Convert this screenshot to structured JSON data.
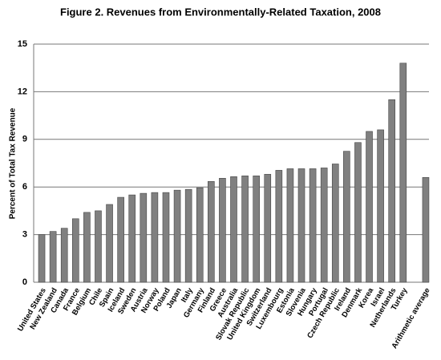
{
  "chart_data": {
    "type": "bar",
    "title": "Figure 2. Revenues from Environmentally-Related Taxation, 2008",
    "y_label": "Percent of Total Tax Revenue",
    "categories": [
      "United States",
      "New Zealand",
      "Canada",
      "France",
      "Belgium",
      "Chile",
      "Spain",
      "Iceland",
      "Sweden",
      "Austria",
      "Norway",
      "Poland",
      "Japan",
      "Italy",
      "Germany",
      "Finland",
      "Greece",
      "Australia",
      "Slovak Republic",
      "United Kingdom",
      "Switzerland",
      "Luxembourg",
      "Estonia",
      "Slovenia",
      "Hungary",
      "Portugal",
      "Czech Republic",
      "Ireland",
      "Denmark",
      "Korea",
      "Israel",
      "Netherlands",
      "Turkey",
      null,
      "Arithmetic average"
    ],
    "values": [
      3.0,
      3.2,
      3.4,
      4.0,
      4.4,
      4.5,
      4.9,
      5.35,
      5.5,
      5.6,
      5.65,
      5.65,
      5.8,
      5.85,
      5.95,
      6.35,
      6.55,
      6.65,
      6.7,
      6.7,
      6.8,
      7.05,
      7.15,
      7.15,
      7.15,
      7.2,
      7.45,
      8.25,
      8.8,
      9.5,
      9.6,
      11.5,
      13.8,
      null,
      6.6
    ],
    "color": "#808080",
    "ylim": [
      0,
      15
    ],
    "yticks": [
      0,
      3,
      6,
      9,
      12,
      15
    ],
    "grid": true
  }
}
